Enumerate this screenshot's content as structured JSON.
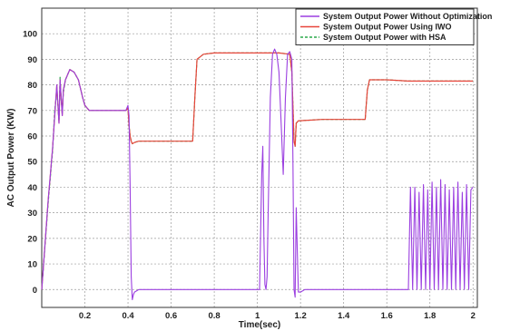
{
  "chart_data": {
    "type": "line",
    "title": "",
    "xlabel": "Time(sec)",
    "ylabel": "AC Output Power (KW)",
    "xlim": [
      0,
      2.02
    ],
    "ylim": [
      -7,
      110
    ],
    "x_ticks": [
      0.2,
      0.4,
      0.6,
      0.8,
      1,
      1.2,
      1.4,
      1.6,
      1.8,
      2
    ],
    "x_tick_labels": [
      "0.2",
      "0.4",
      "0.6",
      "0.8",
      "1",
      "1.2",
      "1.4",
      "1.6",
      "1.8",
      "2"
    ],
    "y_ticks": [
      0,
      10,
      20,
      30,
      40,
      50,
      60,
      70,
      80,
      90,
      100
    ],
    "y_tick_labels": [
      "0",
      "10",
      "20",
      "30",
      "40",
      "50",
      "60",
      "70",
      "80",
      "90",
      "100"
    ],
    "grid": true,
    "legend_position": "top-right",
    "series": [
      {
        "name": "System Output Power Without Optimization",
        "color": "#9b3fe0",
        "x": [
          0.0,
          0.03,
          0.05,
          0.06,
          0.07,
          0.08,
          0.085,
          0.09,
          0.095,
          0.1,
          0.11,
          0.13,
          0.15,
          0.17,
          0.19,
          0.2,
          0.22,
          0.25,
          0.3,
          0.35,
          0.39,
          0.4,
          0.405,
          0.41,
          0.415,
          0.42,
          0.425,
          0.43,
          0.45,
          0.5,
          0.6,
          0.7,
          0.8,
          0.9,
          1.0,
          1.01,
          1.02,
          1.025,
          1.03,
          1.035,
          1.04,
          1.045,
          1.05,
          1.06,
          1.07,
          1.08,
          1.09,
          1.1,
          1.11,
          1.12,
          1.13,
          1.14,
          1.15,
          1.16,
          1.165,
          1.17,
          1.175,
          1.18,
          1.185,
          1.19,
          1.2,
          1.22,
          1.3,
          1.4,
          1.5,
          1.6,
          1.69,
          1.7,
          1.71,
          1.72,
          1.73,
          1.74,
          1.75,
          1.76,
          1.77,
          1.78,
          1.79,
          1.8,
          1.81,
          1.82,
          1.83,
          1.84,
          1.85,
          1.86,
          1.87,
          1.88,
          1.89,
          1.9,
          1.91,
          1.92,
          1.93,
          1.94,
          1.95,
          1.96,
          1.97,
          1.98,
          1.99,
          2.0
        ],
        "y": [
          0,
          35,
          55,
          68,
          80,
          65,
          82,
          75,
          68,
          78,
          82,
          86,
          85,
          82,
          75,
          72,
          70,
          70,
          70,
          70,
          70,
          72,
          68,
          40,
          5,
          -4,
          -2,
          -1,
          0,
          0,
          0,
          0,
          0,
          0,
          0,
          0,
          45,
          56,
          20,
          2,
          0,
          5,
          30,
          75,
          92,
          94,
          92,
          85,
          65,
          45,
          75,
          92,
          93,
          90,
          50,
          0,
          -3,
          32,
          15,
          -1,
          -1,
          0,
          0,
          0,
          0,
          0,
          0,
          0,
          40,
          0,
          40,
          0,
          38,
          0,
          41,
          0,
          39,
          0,
          42,
          0,
          40,
          0,
          43,
          0,
          41,
          0,
          39,
          0,
          40,
          0,
          42,
          0,
          38,
          0,
          41,
          0,
          39,
          40
        ]
      },
      {
        "name": "System Output Power Using IWO",
        "color": "#e8443a",
        "x": [
          0.0,
          0.03,
          0.05,
          0.06,
          0.07,
          0.08,
          0.085,
          0.09,
          0.095,
          0.1,
          0.11,
          0.13,
          0.15,
          0.17,
          0.19,
          0.2,
          0.22,
          0.25,
          0.3,
          0.35,
          0.39,
          0.4,
          0.405,
          0.41,
          0.415,
          0.42,
          0.43,
          0.45,
          0.5,
          0.6,
          0.7,
          0.71,
          0.72,
          0.75,
          0.8,
          0.9,
          1.0,
          1.1,
          1.15,
          1.16,
          1.17,
          1.175,
          1.18,
          1.19,
          1.2,
          1.3,
          1.4,
          1.45,
          1.5,
          1.51,
          1.52,
          1.55,
          1.6,
          1.7,
          1.8,
          1.9,
          2.0
        ],
        "y": [
          0,
          35,
          55,
          68,
          80,
          65,
          82,
          75,
          68,
          78,
          82,
          86,
          85,
          82,
          75,
          72,
          70,
          70,
          70,
          70,
          70,
          71,
          64,
          60,
          58,
          57,
          57.5,
          58,
          58,
          58,
          58,
          75,
          90,
          92,
          92.5,
          92.5,
          92.5,
          92.5,
          92,
          85,
          58,
          56,
          65,
          66,
          66,
          66.5,
          66.5,
          66.5,
          66.5,
          78,
          82,
          82,
          82,
          81.5,
          81.5,
          81.5,
          81.5
        ]
      },
      {
        "name": "System Output Power with HSA",
        "color": "#2aa84a",
        "x": [
          0.0,
          0.03,
          0.05,
          0.06,
          0.07,
          0.08,
          0.085,
          0.09,
          0.095,
          0.1,
          0.11,
          0.13,
          0.15,
          0.17,
          0.19,
          0.2,
          0.22,
          0.25,
          0.3,
          0.35,
          0.39,
          0.4,
          0.405,
          0.41,
          0.415,
          0.42,
          0.43,
          0.45,
          0.5,
          0.6,
          0.7,
          0.71,
          0.72,
          0.75,
          0.8,
          0.9,
          1.0,
          1.1,
          1.15,
          1.16,
          1.17,
          1.175,
          1.18,
          1.19,
          1.2,
          1.3,
          1.4,
          1.45,
          1.5,
          1.51,
          1.52,
          1.55,
          1.6,
          1.7,
          1.8,
          1.9,
          2.0
        ],
        "y": [
          0,
          34,
          54,
          70,
          78,
          66,
          83,
          74,
          69,
          77,
          82,
          86,
          85,
          82,
          75,
          72,
          70,
          70,
          70,
          70,
          70,
          71,
          64,
          60,
          58,
          57,
          57.5,
          58,
          58,
          58,
          58,
          75,
          90,
          92,
          92.5,
          92.5,
          92.5,
          92.5,
          92,
          85,
          58,
          56,
          65,
          66,
          66,
          66.5,
          66.5,
          66.5,
          66.5,
          78,
          82,
          82,
          82,
          81.5,
          81.5,
          81.5,
          81.5
        ]
      }
    ]
  }
}
